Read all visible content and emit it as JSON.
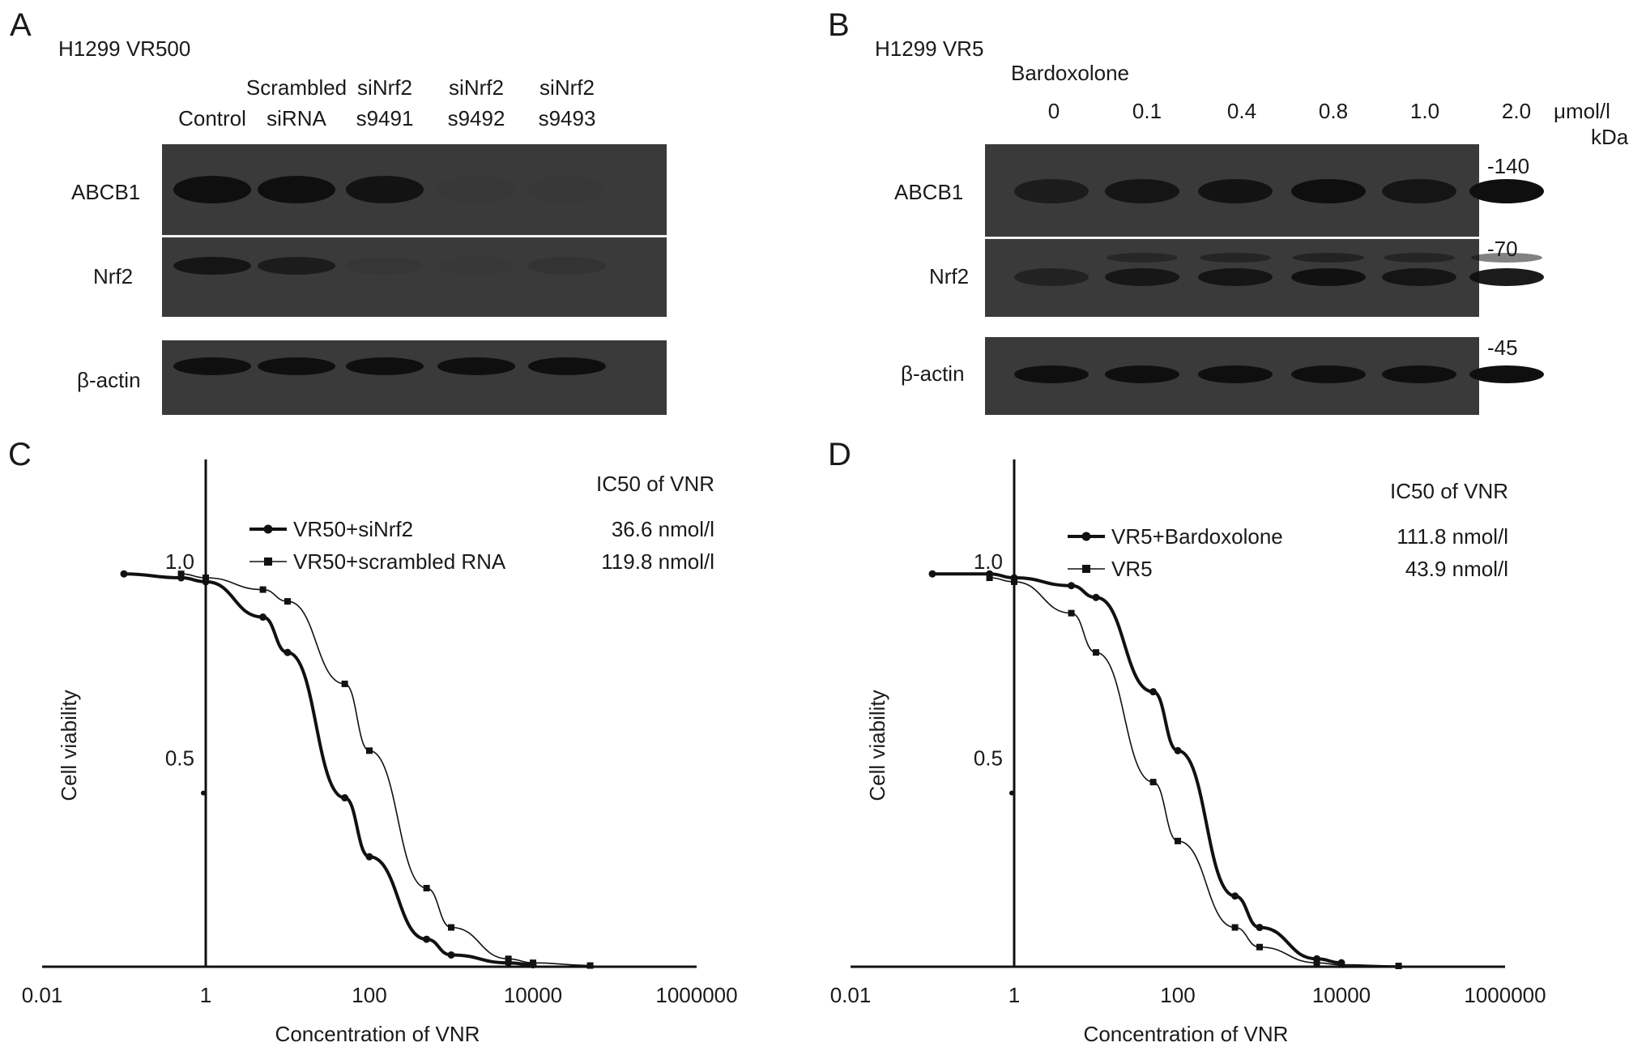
{
  "panels": {
    "A": {
      "letter": "A",
      "title": "H1299 VR500",
      "lanes": [
        {
          "line1": "",
          "line2": "Control"
        },
        {
          "line1": "Scrambled",
          "line2": "siRNA"
        },
        {
          "line1": "siNrf2",
          "line2": "s9491"
        },
        {
          "line1": "siNrf2",
          "line2": "s9492"
        },
        {
          "line1": "siNrf2",
          "line2": "s9493"
        }
      ],
      "rows": [
        "ABCB1",
        "Nrf2",
        "β-actin"
      ],
      "band_intensity": {
        "ABCB1": [
          1.0,
          1.0,
          0.9,
          0.05,
          0.03
        ],
        "Nrf2": [
          0.85,
          0.7,
          0.1,
          0.05,
          0.15
        ],
        "β-actin": [
          1.0,
          1.0,
          1.0,
          1.0,
          1.0
        ]
      }
    },
    "B": {
      "letter": "B",
      "title": "H1299 VR5",
      "treatment": "Bardoxolone",
      "doses": [
        "0",
        "0.1",
        "0.4",
        "0.8",
        "1.0",
        "2.0"
      ],
      "dose_unit": "μmol/l",
      "mw_unit": "kDa",
      "markers": [
        "-140",
        "-70",
        "-45"
      ],
      "rows": [
        "ABCB1",
        "Nrf2",
        "β-actin"
      ],
      "band_intensity": {
        "ABCB1": [
          0.7,
          0.85,
          0.9,
          1.0,
          0.85,
          1.0
        ],
        "Nrf2": [
          0.55,
          0.8,
          0.85,
          0.95,
          0.85,
          0.95
        ],
        "β-actin": [
          1.0,
          1.0,
          1.0,
          1.0,
          1.0,
          1.0
        ]
      }
    },
    "C": {
      "letter": "C"
    },
    "D": {
      "letter": "D"
    }
  },
  "chart_data": [
    {
      "id": "C",
      "type": "line",
      "xscale": "log",
      "xlabel": "Concentration of VNR",
      "ylabel": "Cell viability",
      "xticks": [
        "0.01",
        "1",
        "100",
        "10000",
        "1000000"
      ],
      "yticks": [
        "0.5",
        "1.0"
      ],
      "xlim": [
        0.01,
        1000000
      ],
      "ylim": [
        0,
        1.25
      ],
      "legend_title": "IC50 of VNR",
      "legend_position": "top-right",
      "series": [
        {
          "name": "VR50+siNrf2",
          "ic50": "36.6 nmol/l",
          "marker": "circle",
          "weight": "bold",
          "x": [
            0.1,
            0.5,
            1,
            5,
            10,
            50,
            100,
            500,
            1000,
            5000,
            10000
          ],
          "y": [
            1.0,
            0.99,
            0.98,
            0.89,
            0.8,
            0.43,
            0.28,
            0.07,
            0.03,
            0.01,
            0.005
          ]
        },
        {
          "name": "VR50+scrambled RNA",
          "ic50": "119.8 nmol/l",
          "marker": "square",
          "weight": "thin",
          "x": [
            0.5,
            1,
            5,
            10,
            50,
            100,
            500,
            1000,
            5000,
            10000,
            50000
          ],
          "y": [
            1.0,
            0.99,
            0.96,
            0.93,
            0.72,
            0.55,
            0.2,
            0.1,
            0.02,
            0.01,
            0.003
          ]
        }
      ]
    },
    {
      "id": "D",
      "type": "line",
      "xscale": "log",
      "xlabel": "Concentration of VNR",
      "ylabel": "Cell viability",
      "xticks": [
        "0.01",
        "1",
        "100",
        "10000",
        "1000000"
      ],
      "yticks": [
        "0.5",
        "1.0"
      ],
      "xlim": [
        0.01,
        1000000
      ],
      "ylim": [
        0,
        1.25
      ],
      "legend_title": "IC50 of VNR",
      "legend_position": "top-right",
      "series": [
        {
          "name": "VR5+Bardoxolone",
          "ic50": "111.8 nmol/l",
          "marker": "circle",
          "weight": "bold",
          "x": [
            0.1,
            0.5,
            1,
            5,
            10,
            50,
            100,
            500,
            1000,
            5000,
            10000
          ],
          "y": [
            1.0,
            1.0,
            0.99,
            0.97,
            0.94,
            0.7,
            0.55,
            0.18,
            0.1,
            0.02,
            0.01
          ]
        },
        {
          "name": "VR5",
          "ic50": "43.9 nmol/l",
          "marker": "square",
          "weight": "thin",
          "x": [
            0.5,
            1,
            5,
            10,
            50,
            100,
            500,
            1000,
            5000,
            10000,
            50000
          ],
          "y": [
            0.99,
            0.98,
            0.9,
            0.8,
            0.47,
            0.32,
            0.1,
            0.05,
            0.01,
            0.005,
            0.002
          ]
        }
      ]
    }
  ]
}
